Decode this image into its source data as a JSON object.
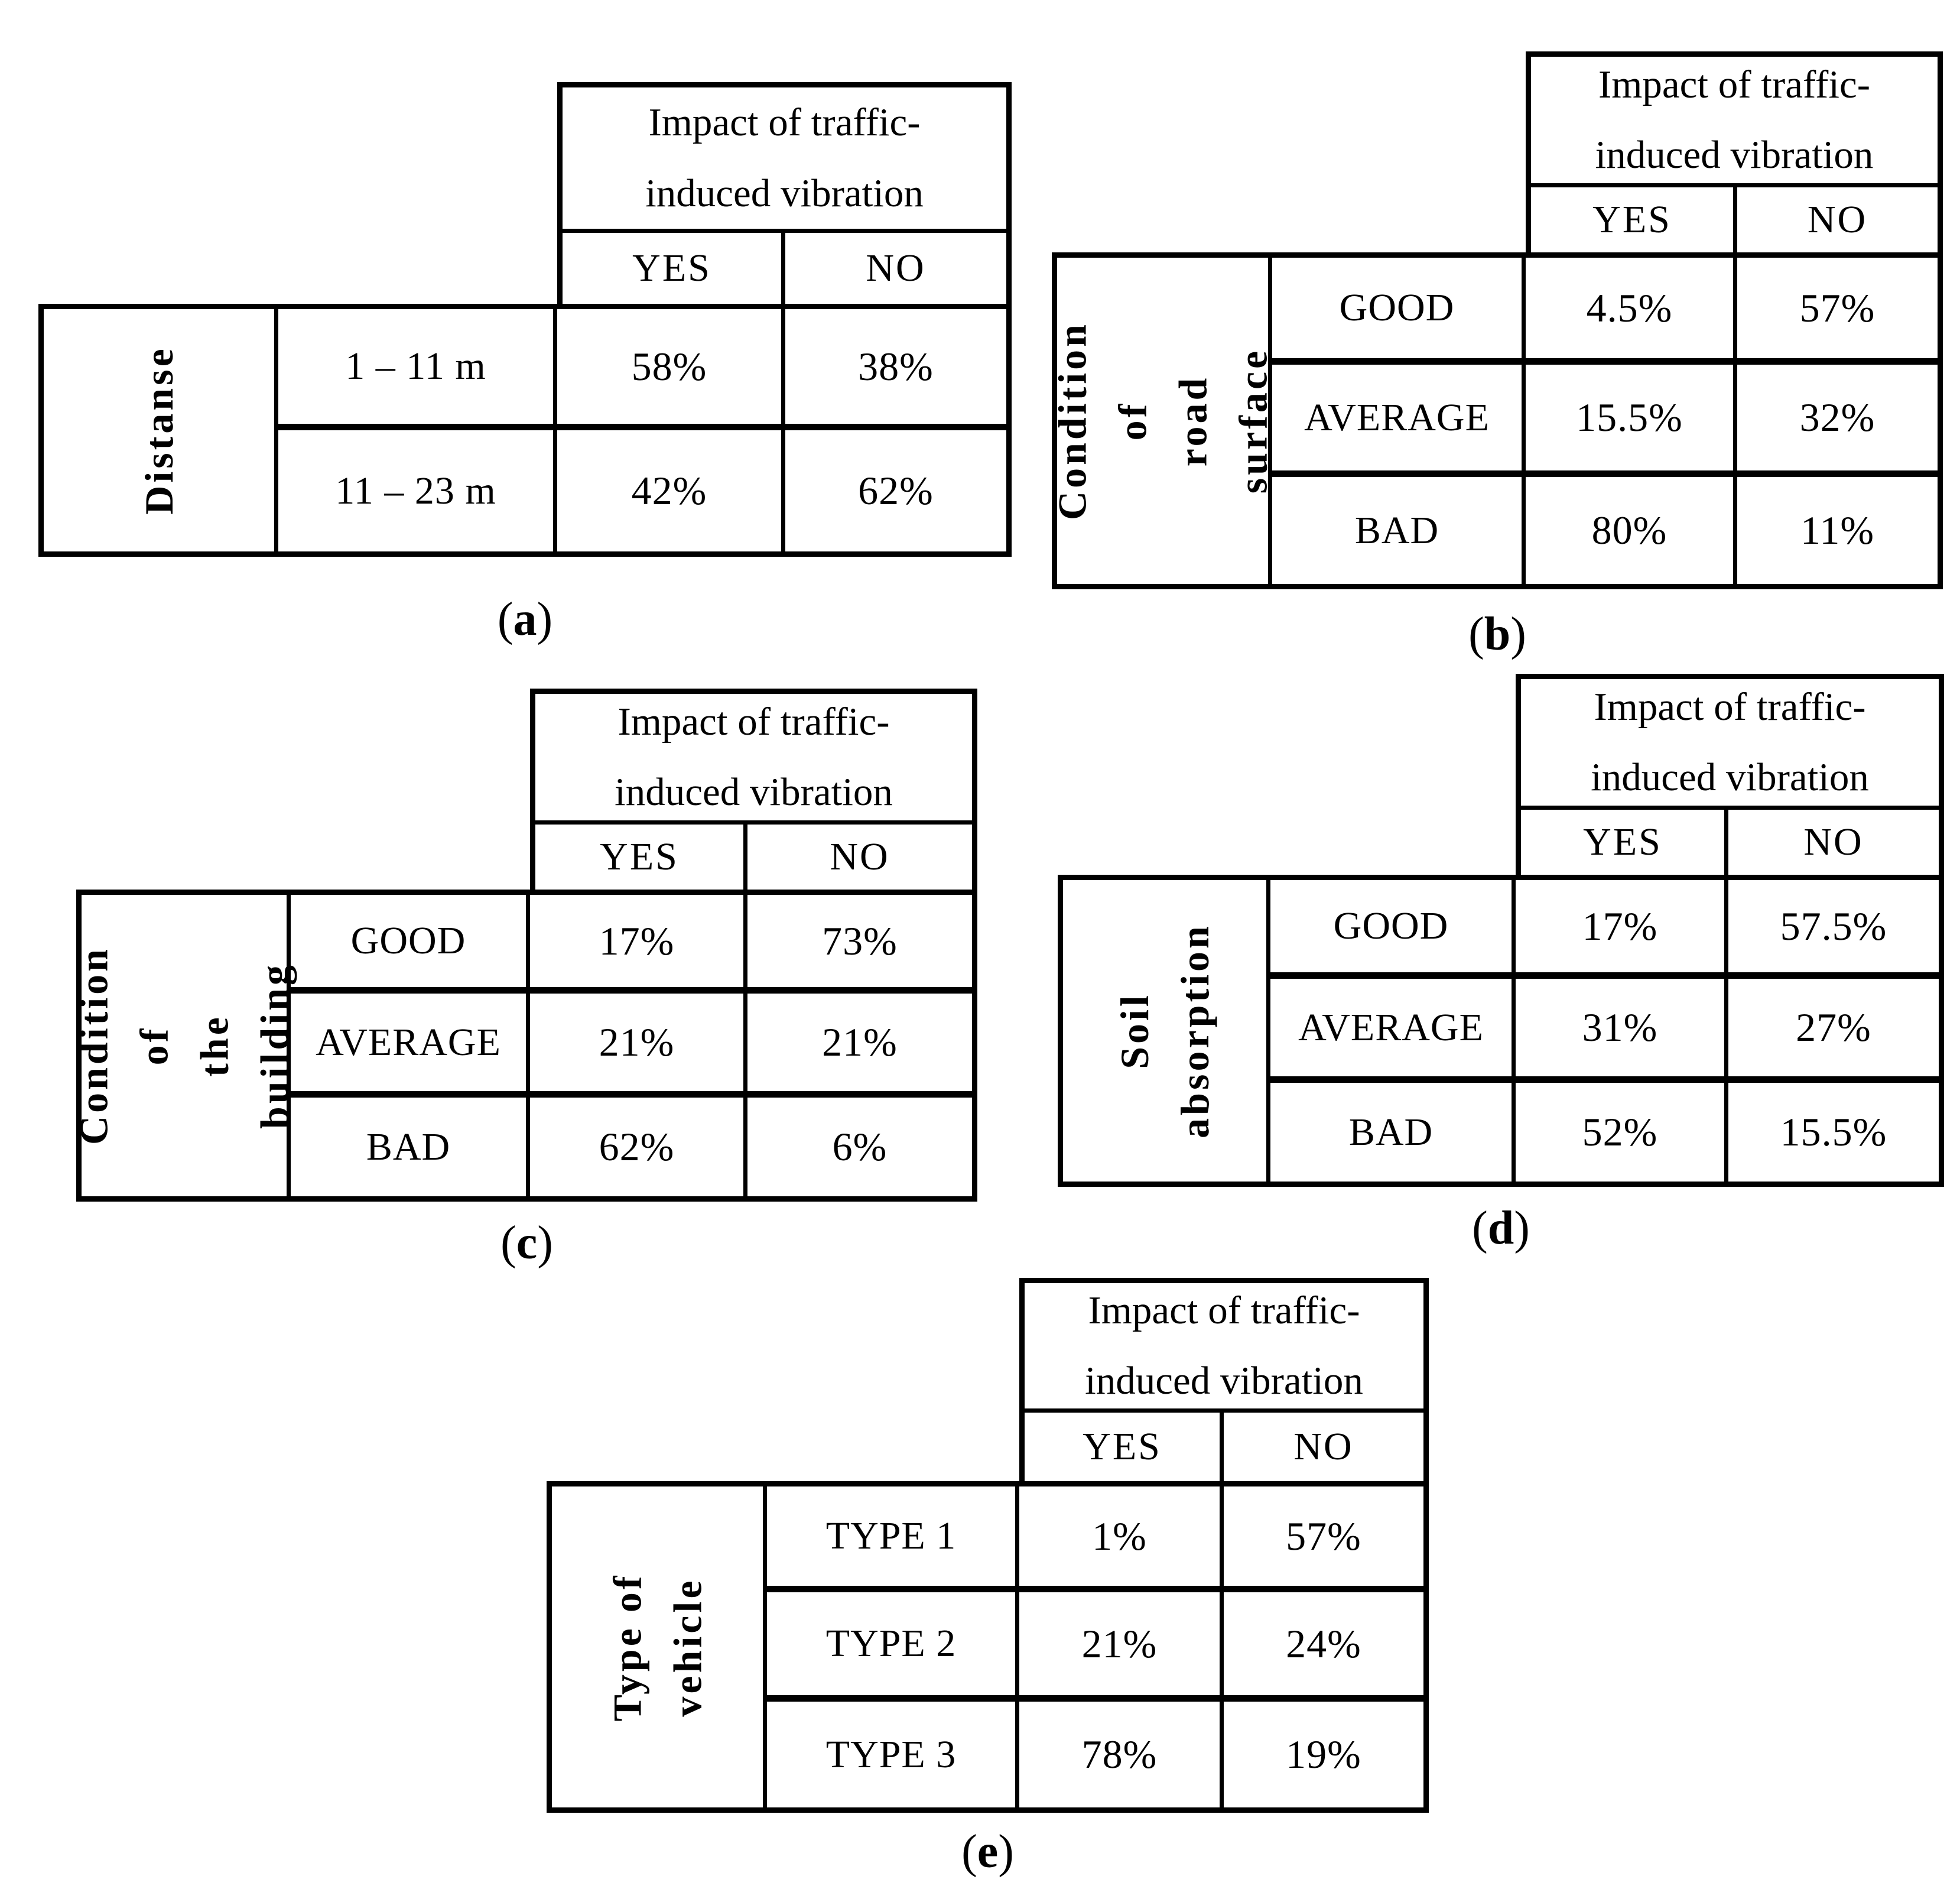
{
  "page": {
    "background": "#ffffff",
    "text_color": "#000000"
  },
  "shared": {
    "header_line1": "Impact of traffic-",
    "header_line2": "induced vibration",
    "yes_label": "YES",
    "no_label": "NO"
  },
  "tables": [
    {
      "id": "a",
      "row_label": "Distanse",
      "caption": {
        "open": "(",
        "letter": "a",
        "close": ")"
      },
      "rows": [
        {
          "category": "1 – 11 m",
          "yes": "58%",
          "no": "38%"
        },
        {
          "category": "11 – 23 m",
          "yes": "42%",
          "no": "62%"
        }
      ]
    },
    {
      "id": "b",
      "row_label": "Condition of\nroad surface",
      "caption": {
        "open": "(",
        "letter": "b",
        "close": ")"
      },
      "rows": [
        {
          "category": "GOOD",
          "yes": "4.5%",
          "no": "57%"
        },
        {
          "category": "AVERAGE",
          "yes": "15.5%",
          "no": "32%"
        },
        {
          "category": "BAD",
          "yes": "80%",
          "no": "11%"
        }
      ]
    },
    {
      "id": "c",
      "row_label": "Condition of\nthe building",
      "caption": {
        "open": "(",
        "letter": "c",
        "close": ")"
      },
      "rows": [
        {
          "category": "GOOD",
          "yes": "17%",
          "no": "73%"
        },
        {
          "category": "AVERAGE",
          "yes": "21%",
          "no": "21%"
        },
        {
          "category": "BAD",
          "yes": "62%",
          "no": "6%"
        }
      ]
    },
    {
      "id": "d",
      "row_label": "Soil\nabsorption",
      "caption": {
        "open": "(",
        "letter": "d",
        "close": ")"
      },
      "rows": [
        {
          "category": "GOOD",
          "yes": "17%",
          "no": "57.5%"
        },
        {
          "category": "AVERAGE",
          "yes": "31%",
          "no": "27%"
        },
        {
          "category": "BAD",
          "yes": "52%",
          "no": "15.5%"
        }
      ]
    },
    {
      "id": "e",
      "row_label": "Type of\nvehicle",
      "caption": {
        "open": "(",
        "letter": "e",
        "close": ")"
      },
      "rows": [
        {
          "category": "TYPE 1",
          "yes": "1%",
          "no": "57%"
        },
        {
          "category": "TYPE 2",
          "yes": "21%",
          "no": "24%"
        },
        {
          "category": "TYPE 3",
          "yes": "78%",
          "no": "19%"
        }
      ]
    }
  ]
}
